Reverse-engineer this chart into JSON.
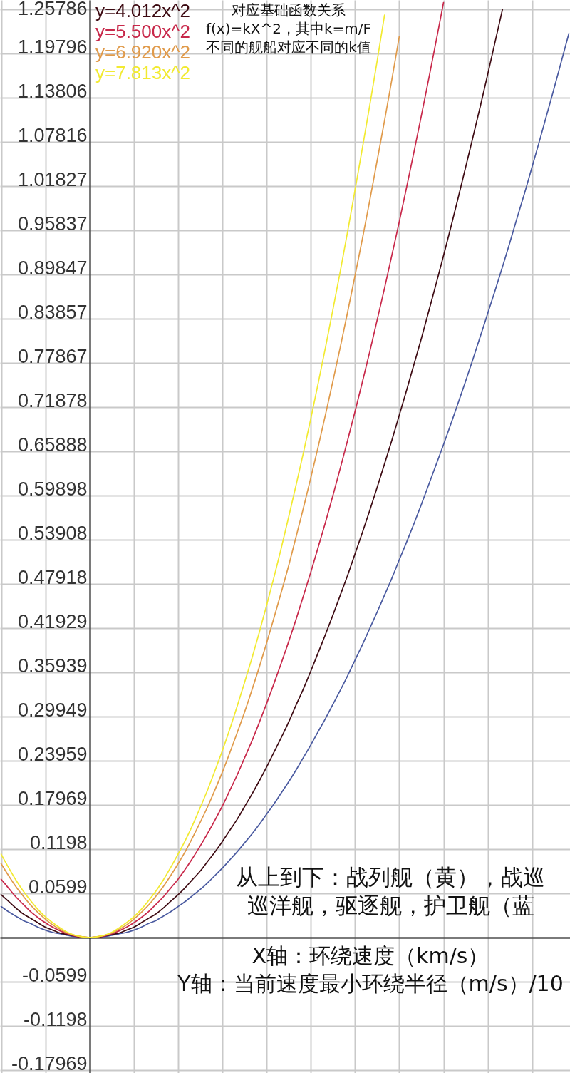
{
  "chart_data": {
    "type": "line",
    "xlabel": "X轴：环绕速度（km/s）",
    "ylabel": "Y轴：当前速度最小环绕半径（m/s）/10",
    "annotations": [
      "对应基础函数关系",
      "f(x)=kX^2，其中k=m/F",
      "不同的舰船对应不同的k值",
      "从上到下：战列舰（黄），战巡",
      "巡洋舰，驱逐舰，护卫舰（蓝"
    ],
    "categories": [
      null,
      null,
      null,
      null,
      null,
      null,
      null,
      null,
      null,
      null,
      null,
      null,
      null,
      null,
      null,
      null,
      null,
      null,
      null,
      null,
      null,
      null,
      null,
      null,
      null,
      null,
      null,
      null,
      null,
      null,
      null,
      null,
      null,
      null,
      null,
      null,
      null,
      null,
      null,
      null,
      null,
      null,
      null,
      null,
      null,
      null,
      null,
      null,
      null,
      null,
      null,
      null,
      null,
      null,
      null,
      null,
      null,
      null,
      null,
      null,
      null,
      null,
      null,
      null,
      null,
      null,
      null,
      null,
      null,
      null,
      null,
      null,
      null,
      null,
      null,
      null,
      null,
      null
    ],
    "series": [
      {
        "color": "#4a5aa0",
        "values": [
          0.042,
          0.035,
          0.029,
          0.023,
          0.019,
          0.014,
          0.01,
          0.007,
          0.005,
          0.003,
          0.001,
          0,
          0,
          0,
          0.001,
          0.003,
          0.005,
          0.007,
          0.01,
          0.014,
          0.019,
          0.023,
          0.029,
          0.035,
          0.042,
          0.049,
          0.057,
          0.065,
          0.074,
          0.084,
          0.094,
          0.105,
          0.116,
          0.128,
          0.14,
          0.153,
          0.167,
          0.181,
          0.196,
          0.211,
          0.227,
          0.244,
          0.261,
          0.279,
          0.297,
          0.316,
          0.335,
          0.355,
          0.376,
          0.397,
          0.419,
          0.441,
          0.464,
          0.487,
          0.512,
          0.536,
          0.561,
          0.587,
          0.614,
          0.641,
          0.668,
          0.696,
          0.725,
          0.754,
          0.784,
          0.815,
          0.846,
          0.877,
          0.909,
          0.942,
          0.976,
          1.009,
          1.044,
          1.079,
          1.115,
          1.151,
          1.188,
          1.225
        ]
      },
      {
        "name": "y=4.012x^2",
        "color": "#3d0a12",
        "values": [
          0.058,
          0.049,
          0.04,
          0.032,
          0.026,
          0.02,
          0.014,
          0.01,
          0.006,
          0.004,
          0.002,
          0,
          0,
          0,
          0.002,
          0.004,
          0.006,
          0.01,
          0.014,
          0.02,
          0.026,
          0.032,
          0.04,
          0.049,
          0.058,
          0.068,
          0.079,
          0.09,
          0.103,
          0.116,
          0.13,
          0.145,
          0.16,
          0.177,
          0.194,
          0.212,
          0.231,
          0.251,
          0.271,
          0.292,
          0.315,
          0.337,
          0.361,
          0.386,
          0.411,
          0.437,
          0.464,
          0.491,
          0.52,
          0.549,
          0.579,
          0.61,
          0.642,
          0.674,
          0.708,
          0.742,
          0.777,
          0.812,
          0.849,
          0.886,
          0.924,
          0.963,
          1.003,
          1.044,
          1.085,
          1.127,
          1.17,
          1.214,
          1.258,
          null,
          null,
          null,
          null,
          null,
          null,
          null,
          null,
          null
        ]
      },
      {
        "name": "y=5.500x^2",
        "color": "#c8284a",
        "values": [
          0.079,
          0.067,
          0.055,
          0.045,
          0.035,
          0.027,
          0.02,
          0.014,
          0.009,
          0.005,
          0.002,
          0.001,
          0,
          0.001,
          0.002,
          0.005,
          0.009,
          0.014,
          0.02,
          0.027,
          0.035,
          0.045,
          0.055,
          0.067,
          0.079,
          0.093,
          0.108,
          0.124,
          0.141,
          0.159,
          0.178,
          0.199,
          0.22,
          0.243,
          0.266,
          0.291,
          0.317,
          0.344,
          0.372,
          0.401,
          0.431,
          0.463,
          0.495,
          0.529,
          0.563,
          0.599,
          0.636,
          0.674,
          0.713,
          0.753,
          0.794,
          0.837,
          0.88,
          0.925,
          0.97,
          1.017,
          1.065,
          1.114,
          1.164,
          1.215,
          1.267,
          null,
          null,
          null,
          null,
          null,
          null,
          null,
          null,
          null,
          null,
          null,
          null,
          null,
          null,
          null,
          null,
          null
        ]
      },
      {
        "name": "y=6.920x^2",
        "color": "#e09a4a",
        "values": [
          0.1,
          0.084,
          0.069,
          0.056,
          0.044,
          0.034,
          0.025,
          0.017,
          0.011,
          0.006,
          0.003,
          0.001,
          0,
          0.001,
          0.003,
          0.006,
          0.011,
          0.017,
          0.025,
          0.034,
          0.044,
          0.056,
          0.069,
          0.084,
          0.1,
          0.117,
          0.136,
          0.156,
          0.177,
          0.2,
          0.224,
          0.25,
          0.277,
          0.305,
          0.335,
          0.366,
          0.399,
          0.433,
          0.468,
          0.504,
          0.543,
          0.582,
          0.623,
          0.665,
          0.709,
          0.754,
          0.8,
          0.848,
          0.897,
          0.947,
          0.999,
          1.053,
          1.107,
          1.163,
          1.221,
          null,
          null,
          null,
          null,
          null,
          null,
          null,
          null,
          null,
          null,
          null,
          null,
          null,
          null,
          null,
          null,
          null,
          null,
          null,
          null,
          null,
          null,
          null
        ]
      },
      {
        "name": "y=7.813x^2",
        "color": "#f2ea30",
        "values": [
          0.113,
          0.095,
          0.078,
          0.063,
          0.05,
          0.038,
          0.028,
          0.02,
          0.013,
          0.007,
          0.003,
          0.001,
          0,
          0.001,
          0.003,
          0.007,
          0.013,
          0.02,
          0.028,
          0.038,
          0.05,
          0.063,
          0.078,
          0.095,
          0.113,
          0.132,
          0.153,
          0.176,
          0.2,
          0.226,
          0.253,
          0.282,
          0.313,
          0.345,
          0.378,
          0.413,
          0.45,
          0.488,
          0.528,
          0.57,
          0.613,
          0.657,
          0.703,
          0.751,
          0.8,
          0.851,
          0.903,
          0.957,
          1.013,
          1.07,
          1.128,
          1.188,
          1.25,
          null,
          null,
          null,
          null,
          null,
          null,
          null,
          null,
          null,
          null,
          null,
          null,
          null,
          null,
          null,
          null,
          null,
          null,
          null,
          null,
          null,
          null,
          null,
          null,
          null
        ]
      }
    ],
    "ylim": [
      -0.1836,
      1.2704
    ],
    "yticks": [
      -0.17969,
      -0.1198,
      -0.0599,
      {
        "value": 0,
        "label": null
      },
      0.0599,
      0.1198,
      0.17969,
      0.23959,
      0.29949,
      0.35939,
      0.41929,
      0.47918,
      0.53908,
      0.59898,
      0.65888,
      0.71878,
      0.77867,
      0.83857,
      0.89847,
      0.95837,
      1.01827,
      1.07816,
      1.13806,
      1.19796,
      1.25786
    ],
    "tick_labels": "y",
    "grid": true
  }
}
